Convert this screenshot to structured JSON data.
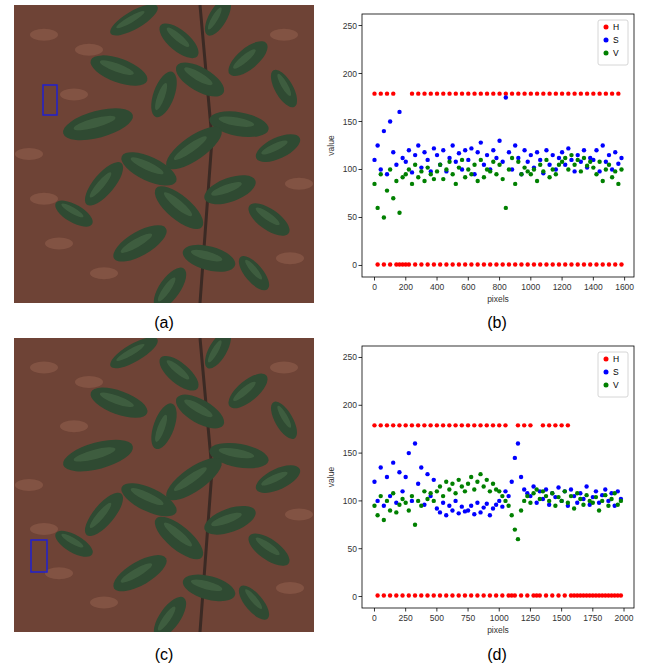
{
  "panel_labels": [
    "(a)",
    "(b)",
    "(c)",
    "(d)"
  ],
  "chart_data": [
    {
      "type": "scatter",
      "x_label": "pixels",
      "y_label": "value",
      "marker": "circle",
      "legend": "upper-right",
      "xlim": [
        -80,
        1660
      ],
      "ylim": [
        -12,
        262
      ],
      "xticks": [
        0,
        200,
        400,
        600,
        800,
        1000,
        1200,
        1400,
        1600
      ],
      "yticks": [
        0,
        50,
        100,
        150,
        200,
        250
      ],
      "x": [
        0,
        20,
        40,
        60,
        80,
        100,
        120,
        140,
        160,
        180,
        200,
        220,
        240,
        260,
        280,
        300,
        320,
        340,
        360,
        380,
        400,
        420,
        440,
        460,
        480,
        500,
        520,
        540,
        560,
        580,
        600,
        620,
        640,
        660,
        680,
        700,
        720,
        740,
        760,
        780,
        800,
        820,
        840,
        860,
        880,
        900,
        920,
        940,
        960,
        980,
        1000,
        1020,
        1040,
        1060,
        1080,
        1100,
        1120,
        1140,
        1160,
        1180,
        1200,
        1220,
        1240,
        1260,
        1280,
        1300,
        1320,
        1340,
        1360,
        1380,
        1400,
        1420,
        1440,
        1460,
        1480,
        1500,
        1520,
        1540,
        1560,
        1580
      ],
      "series": [
        {
          "name": "H",
          "color": "red",
          "values": [
            179,
            1,
            179,
            1,
            179,
            1,
            179,
            1,
            1,
            1,
            1,
            1,
            179,
            1,
            179,
            1,
            179,
            1,
            179,
            1,
            179,
            1,
            179,
            1,
            179,
            1,
            179,
            1,
            179,
            1,
            179,
            1,
            179,
            1,
            179,
            1,
            179,
            1,
            179,
            1,
            179,
            1,
            179,
            1,
            179,
            1,
            179,
            1,
            179,
            1,
            179,
            1,
            179,
            1,
            179,
            1,
            179,
            1,
            179,
            1,
            179,
            1,
            179,
            1,
            179,
            1,
            179,
            1,
            179,
            1,
            179,
            1,
            179,
            1,
            179,
            1,
            179,
            1,
            179,
            1
          ]
        },
        {
          "name": "S",
          "color": "blue",
          "values": [
            110,
            125,
            100,
            140,
            95,
            150,
            118,
            105,
            160,
            112,
            108,
            120,
            97,
            115,
            125,
            102,
            118,
            110,
            98,
            122,
            115,
            105,
            120,
            98,
            112,
            125,
            108,
            117,
            100,
            120,
            110,
            122,
            95,
            118,
            128,
            105,
            115,
            100,
            120,
            112,
            130,
            108,
            175,
            118,
            100,
            125,
            112,
            95,
            120,
            108,
            115,
            102,
            118,
            110,
            96,
            120,
            105,
            115,
            100,
            112,
            118,
            105,
            122,
            110,
            98,
            115,
            108,
            120,
            102,
            112,
            110,
            120,
            98,
            125,
            108,
            115,
            100,
            118,
            106,
            112
          ]
        },
        {
          "name": "V",
          "color": "green",
          "values": [
            85,
            60,
            95,
            50,
            78,
            100,
            70,
            88,
            55,
            92,
            95,
            100,
            85,
            105,
            92,
            98,
            88,
            102,
            95,
            90,
            98,
            105,
            90,
            100,
            108,
            95,
            85,
            102,
            110,
            92,
            100,
            95,
            105,
            88,
            110,
            92,
            100,
            98,
            108,
            95,
            105,
            90,
            60,
            100,
            112,
            85,
            108,
            95,
            102,
            98,
            95,
            100,
            88,
            105,
            98,
            110,
            92,
            100,
            95,
            105,
            108,
            112,
            100,
            115,
            105,
            110,
            98,
            112,
            104,
            108,
            102,
            95,
            108,
            88,
            100,
            105,
            92,
            98,
            85,
            100
          ]
        }
      ]
    },
    {
      "type": "scatter",
      "x_label": "pixels",
      "y_label": "value",
      "marker": "circle",
      "legend": "upper-right",
      "xlim": [
        -100,
        2080
      ],
      "ylim": [
        -12,
        262
      ],
      "xticks": [
        0,
        250,
        500,
        750,
        1000,
        1250,
        1500,
        1750,
        2000
      ],
      "yticks": [
        0,
        50,
        100,
        150,
        200,
        250
      ],
      "x": [
        0,
        25,
        50,
        75,
        100,
        125,
        150,
        175,
        200,
        225,
        250,
        275,
        300,
        325,
        350,
        375,
        400,
        425,
        450,
        475,
        500,
        525,
        550,
        575,
        600,
        625,
        650,
        675,
        700,
        725,
        750,
        775,
        800,
        825,
        850,
        875,
        900,
        925,
        950,
        975,
        1000,
        1025,
        1050,
        1075,
        1100,
        1125,
        1150,
        1175,
        1200,
        1225,
        1250,
        1275,
        1300,
        1325,
        1350,
        1375,
        1400,
        1425,
        1450,
        1475,
        1500,
        1525,
        1550,
        1575,
        1600,
        1625,
        1650,
        1675,
        1700,
        1725,
        1750,
        1775,
        1800,
        1825,
        1850,
        1875,
        1900,
        1925,
        1950,
        1975
      ],
      "series": [
        {
          "name": "H",
          "color": "red",
          "values": [
            179,
            1,
            179,
            1,
            179,
            1,
            179,
            1,
            179,
            1,
            179,
            1,
            179,
            1,
            179,
            1,
            179,
            1,
            179,
            1,
            179,
            1,
            179,
            1,
            179,
            1,
            179,
            1,
            179,
            1,
            179,
            1,
            179,
            1,
            179,
            1,
            179,
            1,
            179,
            1,
            179,
            1,
            179,
            1,
            1,
            1,
            179,
            1,
            179,
            1,
            179,
            1,
            1,
            1,
            179,
            1,
            179,
            1,
            179,
            1,
            179,
            1,
            179,
            1,
            1,
            1,
            1,
            1,
            1,
            1,
            1,
            1,
            1,
            1,
            1,
            1,
            1,
            1,
            1,
            1
          ]
        },
        {
          "name": "S",
          "color": "blue",
          "values": [
            120,
            100,
            135,
            95,
            125,
            105,
            140,
            98,
            130,
            110,
            125,
            150,
            100,
            160,
            118,
            135,
            96,
            128,
            105,
            122,
            92,
            88,
            98,
            85,
            95,
            90,
            100,
            87,
            94,
            89,
            90,
            95,
            86,
            98,
            88,
            93,
            97,
            85,
            92,
            96,
            100,
            94,
            110,
            105,
            120,
            145,
            160,
            125,
            112,
            108,
            105,
            115,
            98,
            110,
            102,
            112,
            96,
            108,
            104,
            114,
            100,
            110,
            95,
            112,
            105,
            98,
            108,
            102,
            115,
            96,
            104,
            110,
            98,
            106,
            112,
            100,
            108,
            95,
            110,
            102
          ]
        },
        {
          "name": "V",
          "color": "green",
          "values": [
            95,
            85,
            105,
            80,
            100,
            90,
            108,
            88,
            96,
            102,
            98,
            90,
            105,
            75,
            100,
            95,
            110,
            102,
            108,
            100,
            110,
            115,
            105,
            120,
            112,
            118,
            108,
            122,
            115,
            110,
            118,
            125,
            112,
            120,
            128,
            115,
            122,
            110,
            118,
            112,
            110,
            105,
            100,
            95,
            85,
            70,
            60,
            90,
            100,
            105,
            98,
            108,
            112,
            102,
            110,
            105,
            100,
            108,
            95,
            104,
            100,
            110,
            98,
            105,
            92,
            108,
            102,
            96,
            106,
            100,
            98,
            104,
            90,
            100,
            106,
            95,
            102,
            108,
            96,
            100
          ]
        }
      ]
    }
  ]
}
